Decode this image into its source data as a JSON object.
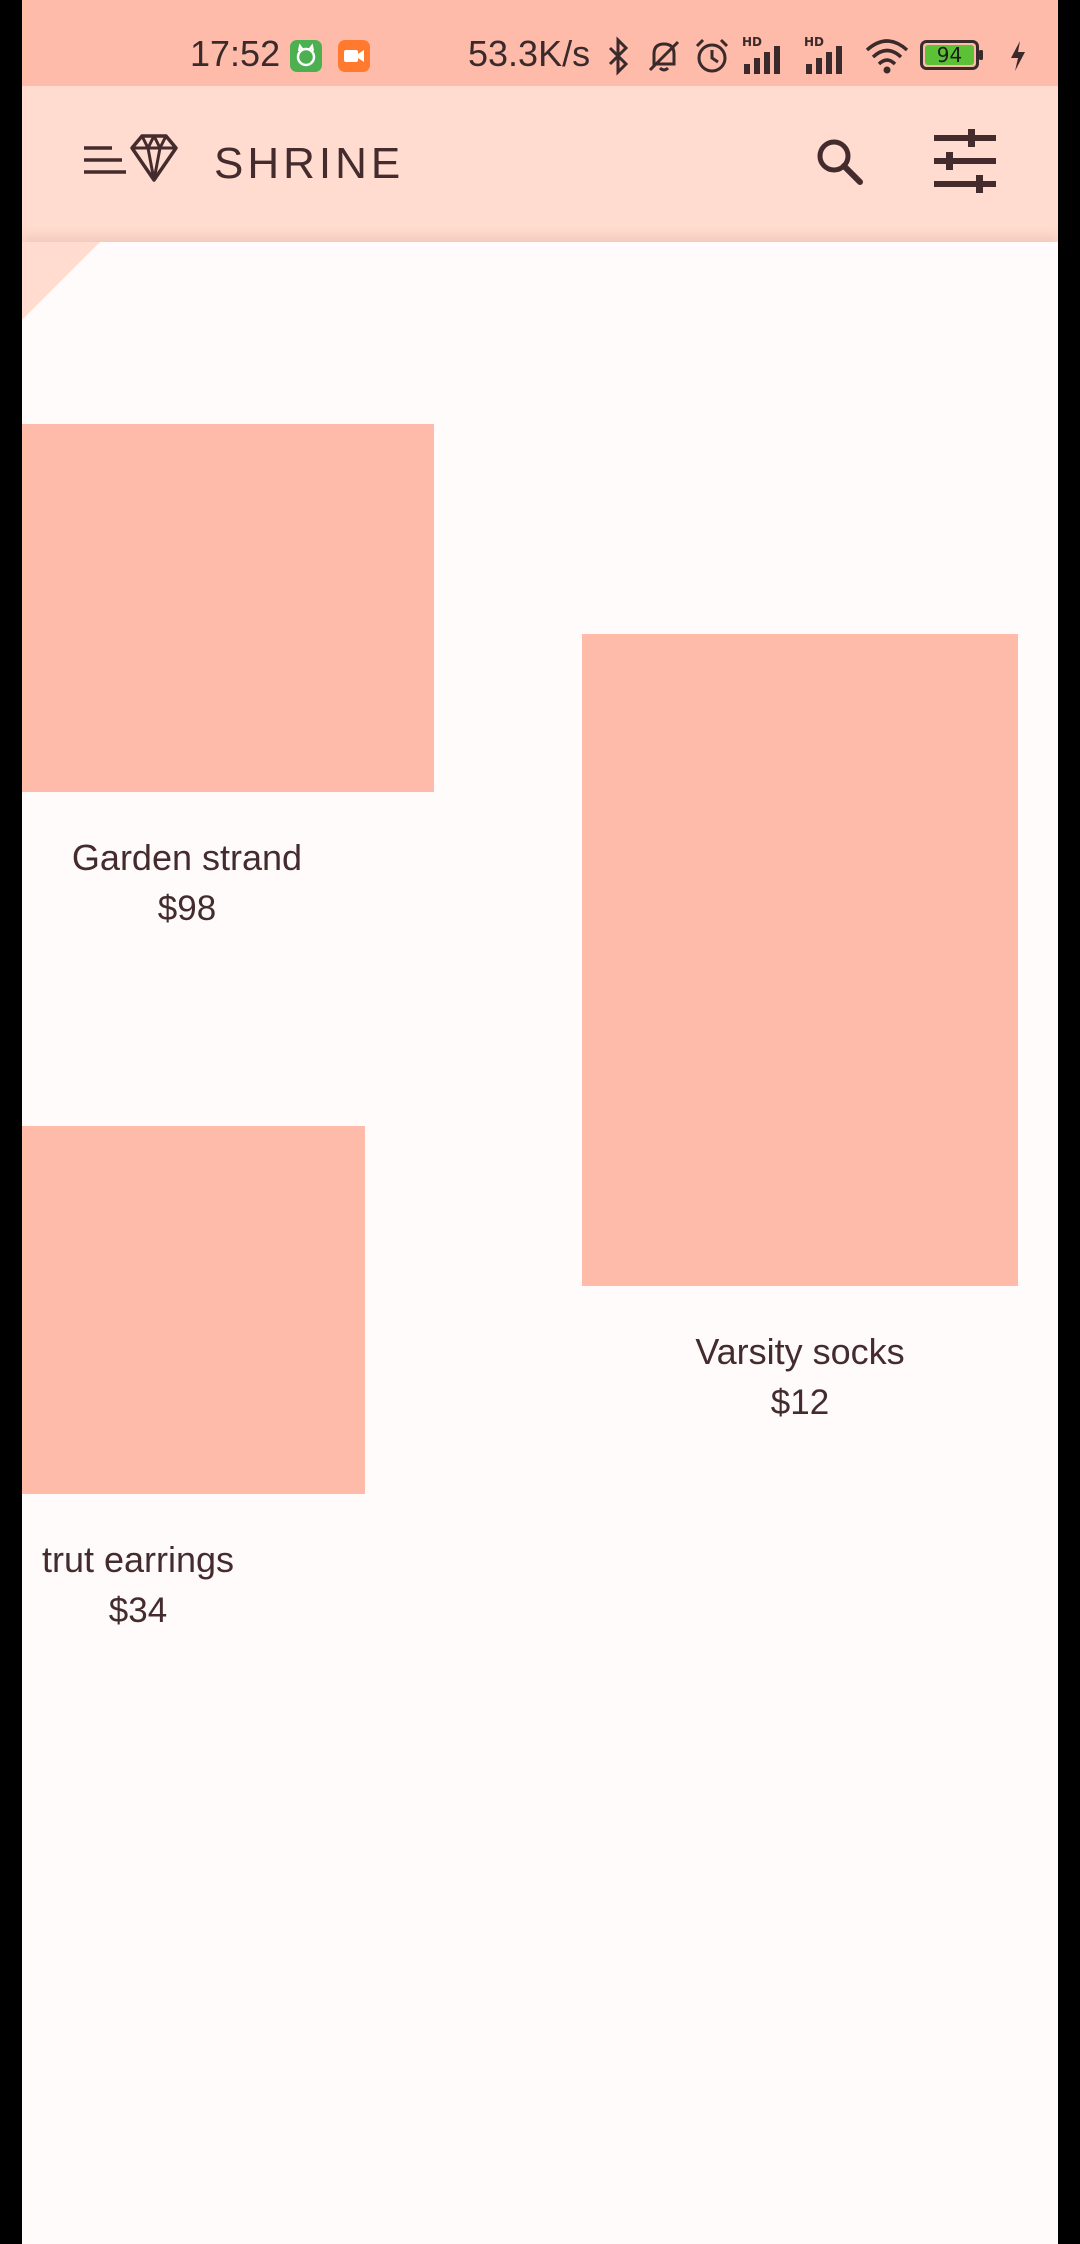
{
  "status_bar": {
    "time": "17:52",
    "network_speed": "53.3K/s",
    "battery_level": "94",
    "icons": [
      "cat-notification-icon",
      "video-notification-icon",
      "bluetooth-icon",
      "mute-icon",
      "alarm-icon",
      "signal-hd-icon",
      "signal-hd-icon",
      "wifi-icon",
      "battery-icon",
      "charging-icon"
    ]
  },
  "app_bar": {
    "title": "SHRINE",
    "icons": [
      "menu-icon",
      "diamond-logo-icon",
      "search-icon",
      "filter-icon"
    ]
  },
  "colors": {
    "status_bar_bg": "#FEBBA9",
    "app_bar_bg": "#FFDCCF",
    "surface": "#FFFBFA",
    "product_placeholder": "#FEBBA9",
    "text": "#442B2D"
  },
  "products": [
    {
      "name": "Garden strand",
      "price": "$98"
    },
    {
      "name": "trut earrings",
      "price": "$34"
    },
    {
      "name": "Varsity socks",
      "price": "$12"
    }
  ]
}
